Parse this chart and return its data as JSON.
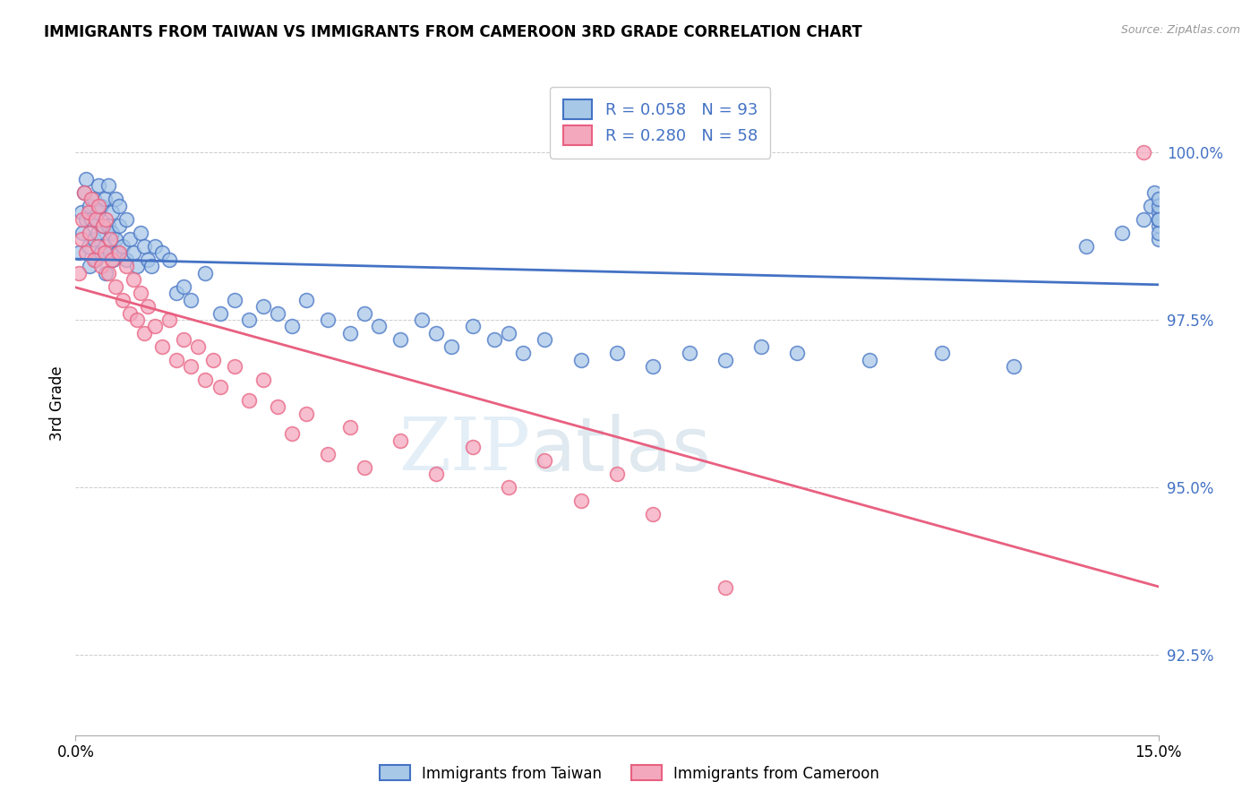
{
  "title": "IMMIGRANTS FROM TAIWAN VS IMMIGRANTS FROM CAMEROON 3RD GRADE CORRELATION CHART",
  "source": "Source: ZipAtlas.com",
  "ylabel": "3rd Grade",
  "y_ticks": [
    92.5,
    95.0,
    97.5,
    100.0
  ],
  "y_tick_labels": [
    "92.5%",
    "95.0%",
    "97.5%",
    "100.0%"
  ],
  "x_range": [
    0.0,
    15.0
  ],
  "y_range": [
    91.3,
    101.2
  ],
  "taiwan_R": 0.058,
  "taiwan_N": 93,
  "cameroon_R": 0.28,
  "cameroon_N": 58,
  "taiwan_color": "#a8c8e8",
  "cameroon_color": "#f4a8be",
  "taiwan_line_color": "#4472c4",
  "cameroon_line_color": "#e86080",
  "taiwan_x": [
    0.05,
    0.08,
    0.1,
    0.12,
    0.15,
    0.15,
    0.18,
    0.2,
    0.2,
    0.22,
    0.25,
    0.25,
    0.28,
    0.3,
    0.3,
    0.32,
    0.35,
    0.35,
    0.38,
    0.4,
    0.4,
    0.42,
    0.45,
    0.45,
    0.48,
    0.5,
    0.5,
    0.52,
    0.55,
    0.55,
    0.58,
    0.6,
    0.6,
    0.65,
    0.7,
    0.7,
    0.75,
    0.8,
    0.85,
    0.9,
    0.95,
    1.0,
    1.05,
    1.1,
    1.2,
    1.3,
    1.4,
    1.5,
    1.6,
    1.8,
    2.0,
    2.2,
    2.4,
    2.6,
    2.8,
    3.0,
    3.2,
    3.5,
    3.8,
    4.0,
    4.2,
    4.5,
    4.8,
    5.0,
    5.2,
    5.5,
    5.8,
    6.0,
    6.2,
    6.5,
    7.0,
    7.5,
    8.0,
    8.5,
    9.0,
    9.5,
    10.0,
    11.0,
    12.0,
    13.0,
    14.0,
    14.5,
    14.8,
    14.9,
    14.95,
    15.0,
    15.0,
    15.0,
    15.0,
    15.0,
    15.0,
    15.0,
    15.0
  ],
  "taiwan_y": [
    98.5,
    99.1,
    98.8,
    99.4,
    99.0,
    99.6,
    98.6,
    99.2,
    98.3,
    99.0,
    98.7,
    99.3,
    98.4,
    99.1,
    98.8,
    99.5,
    98.5,
    99.2,
    98.9,
    98.6,
    99.3,
    98.2,
    98.9,
    99.5,
    98.5,
    98.8,
    99.1,
    98.4,
    98.7,
    99.3,
    98.5,
    98.9,
    99.2,
    98.6,
    98.4,
    99.0,
    98.7,
    98.5,
    98.3,
    98.8,
    98.6,
    98.4,
    98.3,
    98.6,
    98.5,
    98.4,
    97.9,
    98.0,
    97.8,
    98.2,
    97.6,
    97.8,
    97.5,
    97.7,
    97.6,
    97.4,
    97.8,
    97.5,
    97.3,
    97.6,
    97.4,
    97.2,
    97.5,
    97.3,
    97.1,
    97.4,
    97.2,
    97.3,
    97.0,
    97.2,
    96.9,
    97.0,
    96.8,
    97.0,
    96.9,
    97.1,
    97.0,
    96.9,
    97.0,
    96.8,
    98.6,
    98.8,
    99.0,
    99.2,
    99.4,
    99.1,
    98.7,
    98.9,
    99.0,
    99.2,
    98.8,
    99.0,
    99.3
  ],
  "cameroon_x": [
    0.05,
    0.08,
    0.1,
    0.12,
    0.15,
    0.18,
    0.2,
    0.22,
    0.25,
    0.28,
    0.3,
    0.32,
    0.35,
    0.38,
    0.4,
    0.42,
    0.45,
    0.48,
    0.5,
    0.55,
    0.6,
    0.65,
    0.7,
    0.75,
    0.8,
    0.85,
    0.9,
    0.95,
    1.0,
    1.1,
    1.2,
    1.3,
    1.4,
    1.5,
    1.6,
    1.7,
    1.8,
    1.9,
    2.0,
    2.2,
    2.4,
    2.6,
    2.8,
    3.0,
    3.2,
    3.5,
    3.8,
    4.0,
    4.5,
    5.0,
    5.5,
    6.0,
    6.5,
    7.0,
    7.5,
    8.0,
    9.0,
    14.8
  ],
  "cameroon_y": [
    98.2,
    98.7,
    99.0,
    99.4,
    98.5,
    99.1,
    98.8,
    99.3,
    98.4,
    99.0,
    98.6,
    99.2,
    98.3,
    98.9,
    98.5,
    99.0,
    98.2,
    98.7,
    98.4,
    98.0,
    98.5,
    97.8,
    98.3,
    97.6,
    98.1,
    97.5,
    97.9,
    97.3,
    97.7,
    97.4,
    97.1,
    97.5,
    96.9,
    97.2,
    96.8,
    97.1,
    96.6,
    96.9,
    96.5,
    96.8,
    96.3,
    96.6,
    96.2,
    95.8,
    96.1,
    95.5,
    95.9,
    95.3,
    95.7,
    95.2,
    95.6,
    95.0,
    95.4,
    94.8,
    95.2,
    94.6,
    93.5,
    100.0
  ],
  "watermark_zip": "ZIP",
  "watermark_atlas": "atlas",
  "legend_taiwan_label": "Immigrants from Taiwan",
  "legend_cameroon_label": "Immigrants from Cameroon"
}
